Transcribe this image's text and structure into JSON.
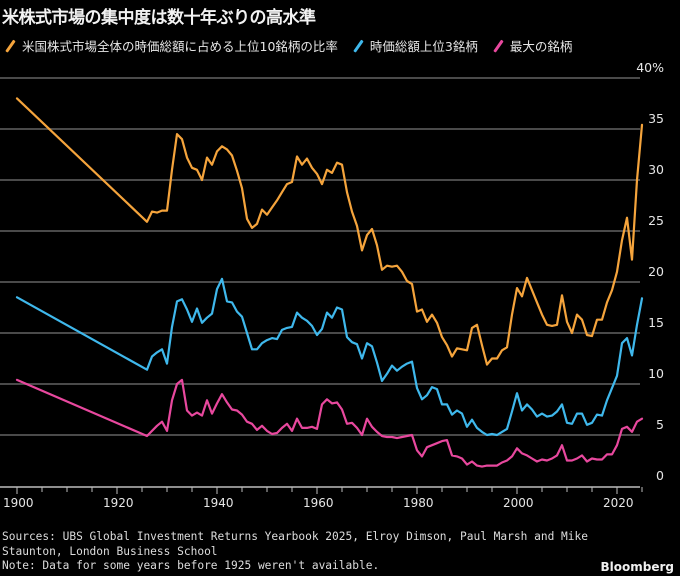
{
  "chart_data": {
    "type": "line",
    "title": "米株式市場の集中度は数十年ぶりの高水準",
    "xlabel": "",
    "ylabel": "",
    "xlim": [
      1900,
      2026
    ],
    "ylim": [
      0,
      40
    ],
    "x_ticks": [
      "1900",
      "1920",
      "1940",
      "1960",
      "1980",
      "2000",
      "2020"
    ],
    "y_ticks": [
      "0",
      "5",
      "10",
      "15",
      "20",
      "25",
      "30",
      "35",
      "40%"
    ],
    "grid": true,
    "legend_position": "top-left",
    "x": [
      1900,
      1926,
      1927,
      1928,
      1929,
      1930,
      1931,
      1932,
      1933,
      1934,
      1935,
      1936,
      1937,
      1938,
      1939,
      1940,
      1941,
      1942,
      1943,
      1944,
      1945,
      1946,
      1947,
      1948,
      1949,
      1950,
      1951,
      1952,
      1953,
      1954,
      1955,
      1956,
      1957,
      1958,
      1959,
      1960,
      1961,
      1962,
      1963,
      1964,
      1965,
      1966,
      1967,
      1968,
      1969,
      1970,
      1971,
      1972,
      1973,
      1974,
      1975,
      1976,
      1977,
      1978,
      1979,
      1980,
      1981,
      1982,
      1983,
      1984,
      1985,
      1986,
      1987,
      1988,
      1989,
      1990,
      1991,
      1992,
      1993,
      1994,
      1995,
      1996,
      1997,
      1998,
      1999,
      2000,
      2001,
      2002,
      2003,
      2004,
      2005,
      2006,
      2007,
      2008,
      2009,
      2010,
      2011,
      2012,
      2013,
      2014,
      2015,
      2016,
      2017,
      2018,
      2019,
      2020,
      2021,
      2022,
      2023,
      2024,
      2025
    ],
    "series": [
      {
        "name": "米国株式市場全体の時価総額に占める上位10銘柄の比率",
        "color": "#f5a43c",
        "values": [
          38,
          25.9,
          26.9,
          26.8,
          27,
          27,
          31,
          34.5,
          34,
          32.2,
          31.2,
          31,
          30,
          32.2,
          31.5,
          32.8,
          33.3,
          33,
          32.4,
          30.9,
          29.2,
          26.2,
          25.3,
          25.7,
          27.1,
          26.6,
          27.3,
          28,
          28.8,
          29.6,
          29.8,
          32.3,
          31.5,
          32.1,
          31.2,
          30.6,
          29.6,
          31,
          30.7,
          31.7,
          31.5,
          28.8,
          26.9,
          25.5,
          23.1,
          24.6,
          25.2,
          23.6,
          21.2,
          21.6,
          21.5,
          21.6,
          21,
          20.1,
          19.8,
          17.1,
          17.3,
          16.1,
          16.8,
          16,
          14.6,
          13.8,
          12.7,
          13.5,
          13.4,
          13.3,
          15.5,
          15.8,
          13.8,
          11.9,
          12.5,
          12.5,
          13.3,
          13.6,
          16.8,
          19.4,
          18.6,
          20.4,
          19.2,
          18,
          16.8,
          15.8,
          15.7,
          15.8,
          18.7,
          16.1,
          15,
          16.8,
          16.3,
          14.8,
          14.7,
          16.3,
          16.3,
          18,
          19.2,
          21,
          24.1,
          26.3,
          22.2,
          30,
          35.4
        ]
      },
      {
        "name": "時価総額上位3銘柄",
        "color": "#3fb8ec",
        "values": [
          18.5,
          11.4,
          12.7,
          13.1,
          13.4,
          12,
          15.6,
          18.1,
          18.3,
          17.3,
          16.1,
          17.4,
          16,
          16.5,
          16.9,
          19.3,
          20.3,
          18.1,
          18,
          17.1,
          16.6,
          15,
          13.4,
          13.4,
          14,
          14.3,
          14.5,
          14.4,
          15.3,
          15.5,
          15.6,
          17,
          16.5,
          16.2,
          15.7,
          14.8,
          15.4,
          17,
          16.5,
          17.5,
          17.3,
          14.6,
          14.1,
          13.9,
          12.5,
          14,
          13.7,
          12.1,
          10.3,
          11,
          11.8,
          11.3,
          11.7,
          12,
          12.2,
          9.6,
          8.5,
          8.9,
          9.7,
          9.5,
          8,
          8,
          7,
          7.4,
          7.1,
          5.8,
          6.5,
          5.7,
          5.3,
          5,
          5.1,
          5,
          5.3,
          5.6,
          7.3,
          9.1,
          7.4,
          8,
          7.5,
          6.8,
          7.1,
          6.8,
          6.9,
          7.3,
          8,
          6.2,
          6.1,
          7.1,
          7.1,
          6,
          6.2,
          7,
          6.9,
          8.4,
          9.6,
          10.8,
          14,
          14.5,
          12.8,
          15.8,
          18.4
        ]
      },
      {
        "name": "最大の銘柄",
        "color": "#e8489e",
        "values": [
          10.4,
          4.9,
          5.4,
          5.9,
          6.3,
          5.4,
          8.4,
          10,
          10.4,
          7.4,
          6.9,
          7.2,
          6.9,
          8.4,
          7.1,
          8.1,
          9,
          8.2,
          7.5,
          7.4,
          7,
          6.3,
          6.1,
          5.5,
          5.9,
          5.4,
          5.1,
          5.2,
          5.7,
          6.1,
          5.4,
          6.6,
          5.7,
          5.7,
          5.8,
          5.6,
          8,
          8.5,
          8.1,
          8.2,
          7.5,
          6.1,
          6.2,
          5.7,
          5,
          6.6,
          5.8,
          5.3,
          4.9,
          4.8,
          4.8,
          4.7,
          4.8,
          4.9,
          5,
          3.5,
          2.9,
          3.8,
          4,
          4.2,
          4.4,
          4.5,
          3,
          2.9,
          2.7,
          2.1,
          2.4,
          2,
          1.9,
          2,
          2,
          2,
          2.3,
          2.5,
          2.9,
          3.7,
          3.2,
          3,
          2.7,
          2.4,
          2.6,
          2.5,
          2.7,
          3,
          4,
          2.5,
          2.5,
          2.7,
          3,
          2.4,
          2.7,
          2.6,
          2.6,
          3.1,
          3.1,
          4,
          5.6,
          5.8,
          5.3,
          6.3,
          6.6
        ]
      }
    ]
  },
  "colors": {
    "background": "#000000",
    "grid": "#4a4a4a",
    "axis": "#bdbdbd",
    "text": "#e6e6e6"
  },
  "footer": {
    "sources_line1": "Sources: UBS Global Investment Returns Yearbook 2025, Elroy Dimson, Paul Marsh and Mike",
    "sources_line2": "Staunton, London Business School",
    "note": "Note: Data for some years before 1925 weren't available."
  },
  "brand": "Bloomberg"
}
